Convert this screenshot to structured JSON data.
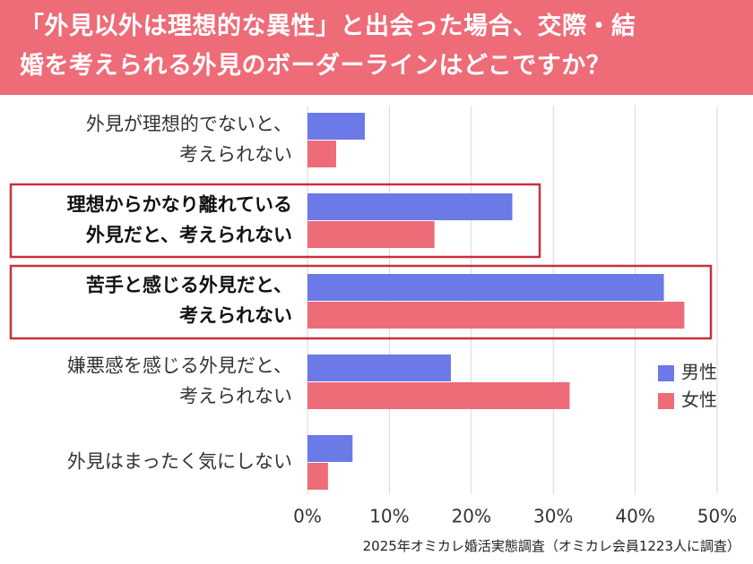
{
  "header": {
    "title_line1": "「外見以外は理想的な異性」と出会った場合、交際・結",
    "title_line2": "婚を考えられる外見のボーダーラインはどこですか？"
  },
  "footer": {
    "source": "2025年オミカレ婚活実態調査（オミカレ会員1223人に調査）"
  },
  "colors": {
    "header_bg": "#ee6b78",
    "male": "#6b7ae6",
    "female": "#ee6b78",
    "highlight_border": "#c8303c",
    "grid": "#d9d9d9"
  },
  "chart_data": {
    "type": "bar",
    "orientation": "horizontal",
    "categories": [
      [
        "外見が理想的でないと、",
        "考えられない"
      ],
      [
        "理想からかなり離れている",
        "外見だと、考えられない"
      ],
      [
        "苦手と感じる外見だと、",
        "考えられない"
      ],
      [
        "嫌悪感を感じる外見だと、",
        "考えられない"
      ],
      [
        "外見はまったく気にしない"
      ]
    ],
    "highlighted": [
      false,
      true,
      true,
      false,
      false
    ],
    "series": [
      {
        "name": "男性",
        "values": [
          7,
          25,
          43.5,
          17.5,
          5.5
        ]
      },
      {
        "name": "女性",
        "values": [
          3.5,
          15.5,
          46,
          32,
          2.5
        ]
      }
    ],
    "xlim": [
      0,
      50
    ],
    "xticks": [
      0,
      10,
      20,
      30,
      40,
      50
    ],
    "tick_suffix": "%",
    "grid": true,
    "legend_position": "right"
  }
}
